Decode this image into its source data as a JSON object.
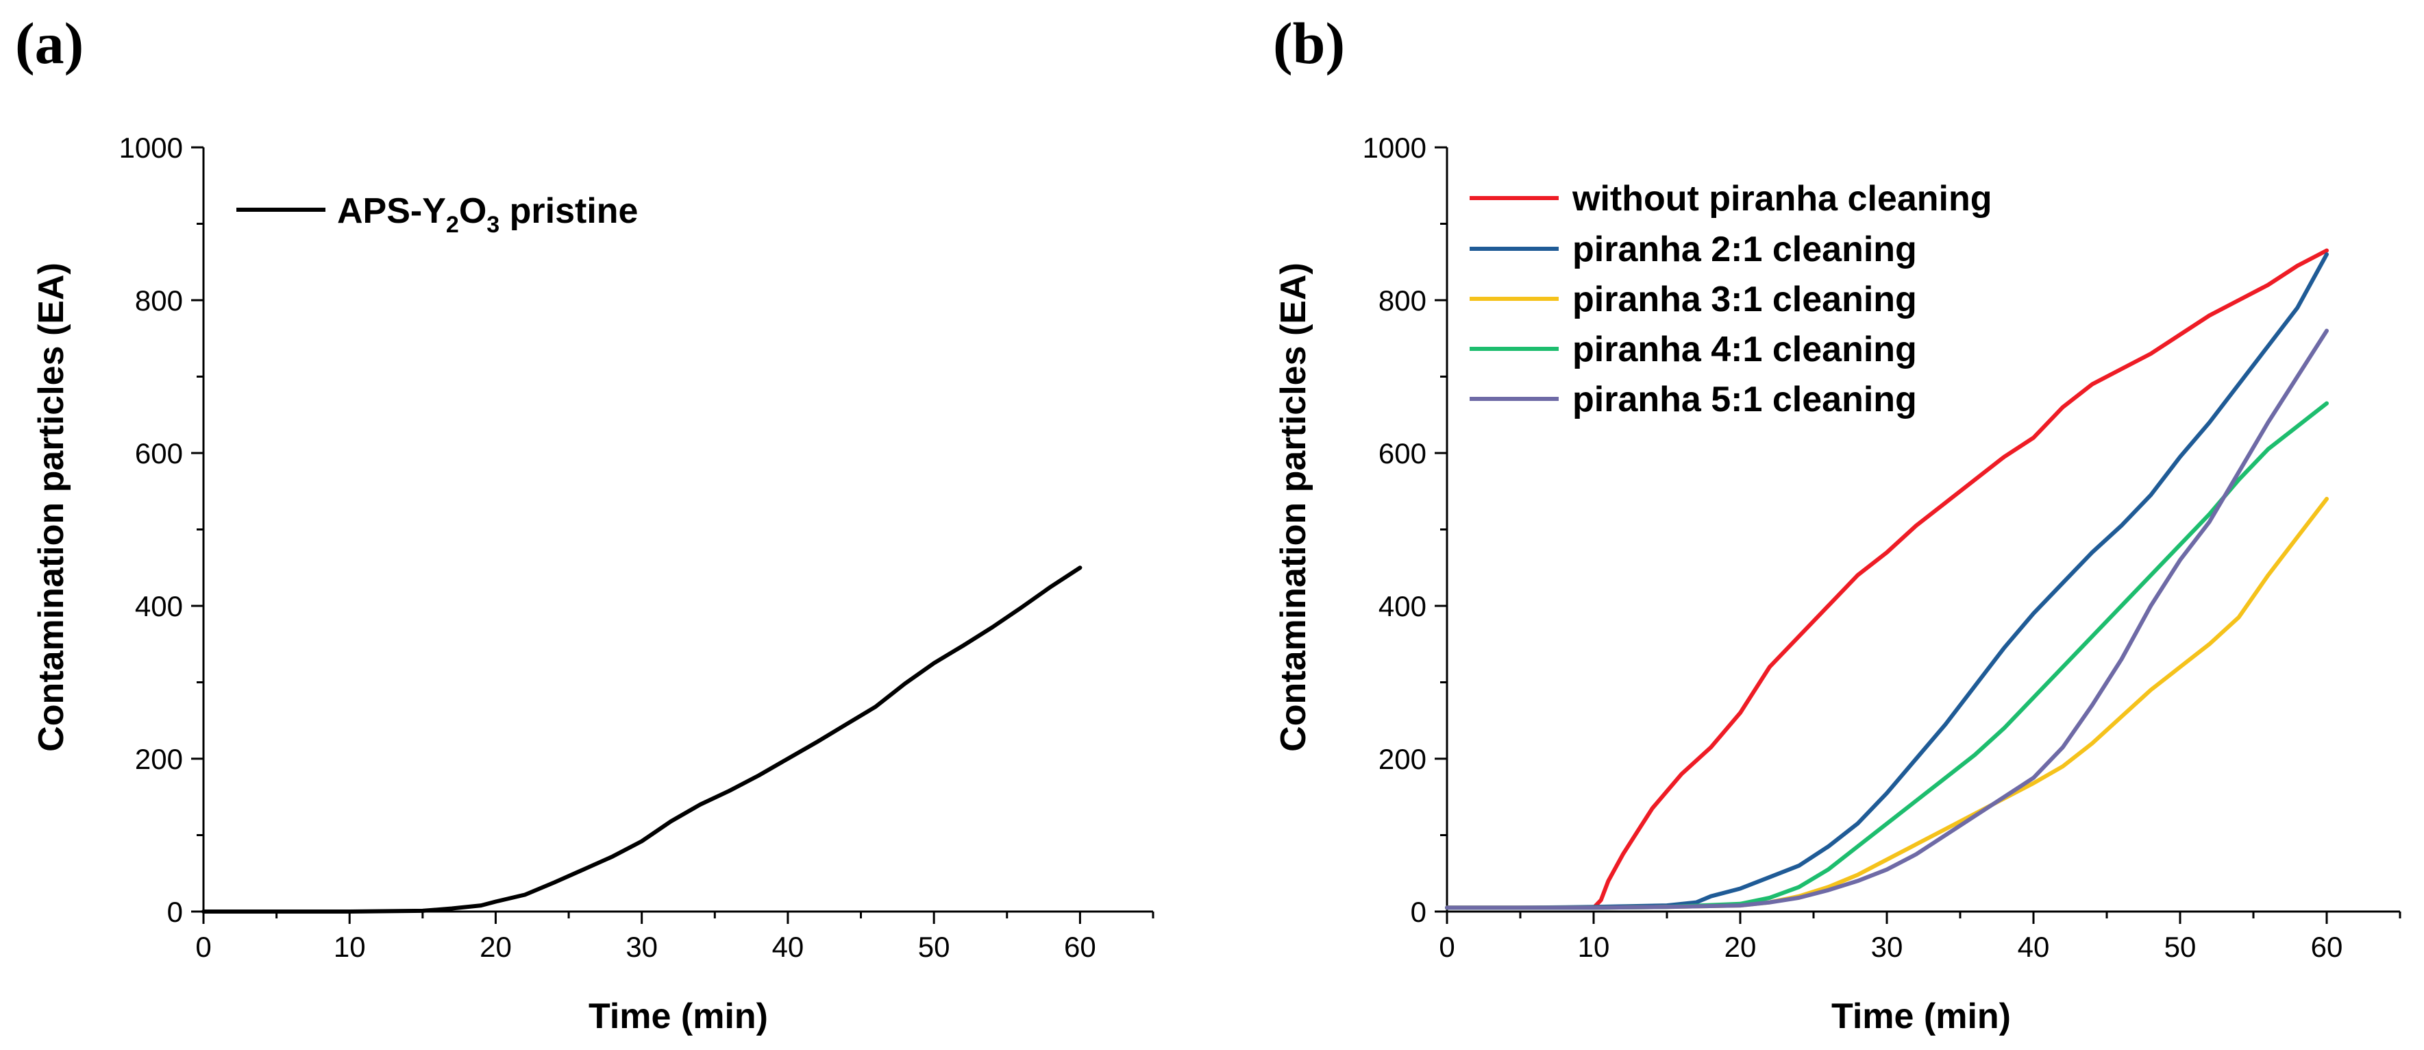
{
  "chart_data": [
    {
      "panel_label": "(a)",
      "type": "line",
      "xlabel": "Time (min)",
      "ylabel": "Contamination particles (EA)",
      "xlim": [
        0,
        65
      ],
      "ylim": [
        0,
        1000
      ],
      "xticks": [
        "0",
        "10",
        "20",
        "30",
        "40",
        "50",
        "60"
      ],
      "yticks": [
        "0",
        "200",
        "400",
        "600",
        "800",
        "1000"
      ],
      "legend_position": "top-left",
      "series": [
        {
          "name": "APS-Y2O3 pristine",
          "legend_parts": [
            "APS-Y",
            "2",
            "O",
            "3",
            " pristine"
          ],
          "color": "#000000",
          "x": [
            0,
            5,
            10,
            15,
            17,
            19,
            20,
            22,
            24,
            26,
            28,
            30,
            32,
            34,
            36,
            38,
            40,
            42,
            44,
            46,
            48,
            50,
            52,
            54,
            56,
            58,
            60
          ],
          "y": [
            0,
            0,
            0,
            1,
            4,
            8,
            13,
            22,
            38,
            55,
            72,
            92,
            118,
            140,
            158,
            178,
            200,
            222,
            245,
            268,
            298,
            325,
            348,
            372,
            398,
            425,
            450
          ]
        }
      ]
    },
    {
      "panel_label": "(b)",
      "type": "line",
      "xlabel": "Time (min)",
      "ylabel": "Contamination particles (EA)",
      "xlim": [
        0,
        65
      ],
      "ylim": [
        0,
        1000
      ],
      "xticks": [
        "0",
        "10",
        "20",
        "30",
        "40",
        "50",
        "60"
      ],
      "yticks": [
        "0",
        "200",
        "400",
        "600",
        "800",
        "1000"
      ],
      "legend_position": "top-left",
      "series": [
        {
          "name": "without piranha cleaning",
          "color": "#ee1c25",
          "x": [
            0,
            5,
            10,
            10.5,
            11,
            12,
            13,
            14,
            16,
            18,
            20,
            22,
            24,
            26,
            28,
            30,
            32,
            34,
            36,
            38,
            40,
            42,
            44,
            46,
            48,
            50,
            52,
            54,
            56,
            58,
            60
          ],
          "y": [
            5,
            5,
            5,
            15,
            40,
            75,
            105,
            135,
            180,
            215,
            260,
            320,
            360,
            400,
            440,
            470,
            505,
            535,
            565,
            595,
            620,
            660,
            690,
            710,
            730,
            755,
            780,
            800,
            820,
            845,
            865
          ]
        },
        {
          "name": "piranha 2:1 cleaning",
          "color": "#1f5b96",
          "x": [
            0,
            5,
            10,
            15,
            17,
            18,
            20,
            22,
            24,
            26,
            28,
            30,
            32,
            34,
            36,
            38,
            40,
            42,
            44,
            46,
            48,
            50,
            52,
            54,
            56,
            58,
            60
          ],
          "y": [
            5,
            5,
            6,
            8,
            12,
            20,
            30,
            45,
            60,
            85,
            115,
            155,
            200,
            245,
            295,
            345,
            390,
            430,
            470,
            505,
            545,
            595,
            640,
            690,
            740,
            790,
            860
          ]
        },
        {
          "name": "piranha 3:1 cleaning",
          "color": "#f5c21b",
          "x": [
            0,
            5,
            10,
            15,
            20,
            22,
            24,
            26,
            28,
            30,
            32,
            34,
            36,
            38,
            40,
            42,
            44,
            46,
            48,
            50,
            52,
            54,
            56,
            58,
            60
          ],
          "y": [
            5,
            5,
            5,
            6,
            8,
            12,
            20,
            32,
            48,
            68,
            88,
            108,
            128,
            148,
            168,
            190,
            220,
            255,
            290,
            320,
            350,
            385,
            440,
            490,
            540
          ]
        },
        {
          "name": "piranha 4:1 cleaning",
          "color": "#1dbd6e",
          "x": [
            0,
            5,
            10,
            15,
            20,
            22,
            24,
            26,
            28,
            30,
            32,
            34,
            36,
            38,
            40,
            42,
            44,
            46,
            48,
            50,
            52,
            54,
            56,
            58,
            60
          ],
          "y": [
            5,
            5,
            5,
            6,
            10,
            18,
            32,
            55,
            85,
            115,
            145,
            175,
            205,
            240,
            280,
            320,
            360,
            400,
            440,
            480,
            520,
            565,
            605,
            635,
            665
          ]
        },
        {
          "name": "piranha 5:1 cleaning",
          "color": "#6e6aa6",
          "x": [
            0,
            5,
            10,
            15,
            20,
            22,
            24,
            26,
            28,
            30,
            32,
            34,
            36,
            38,
            40,
            42,
            44,
            46,
            48,
            50,
            52,
            54,
            56,
            58,
            60
          ],
          "y": [
            5,
            5,
            5,
            6,
            8,
            12,
            18,
            28,
            40,
            55,
            75,
            100,
            125,
            150,
            175,
            215,
            270,
            330,
            400,
            460,
            510,
            575,
            640,
            700,
            760
          ]
        }
      ]
    }
  ]
}
